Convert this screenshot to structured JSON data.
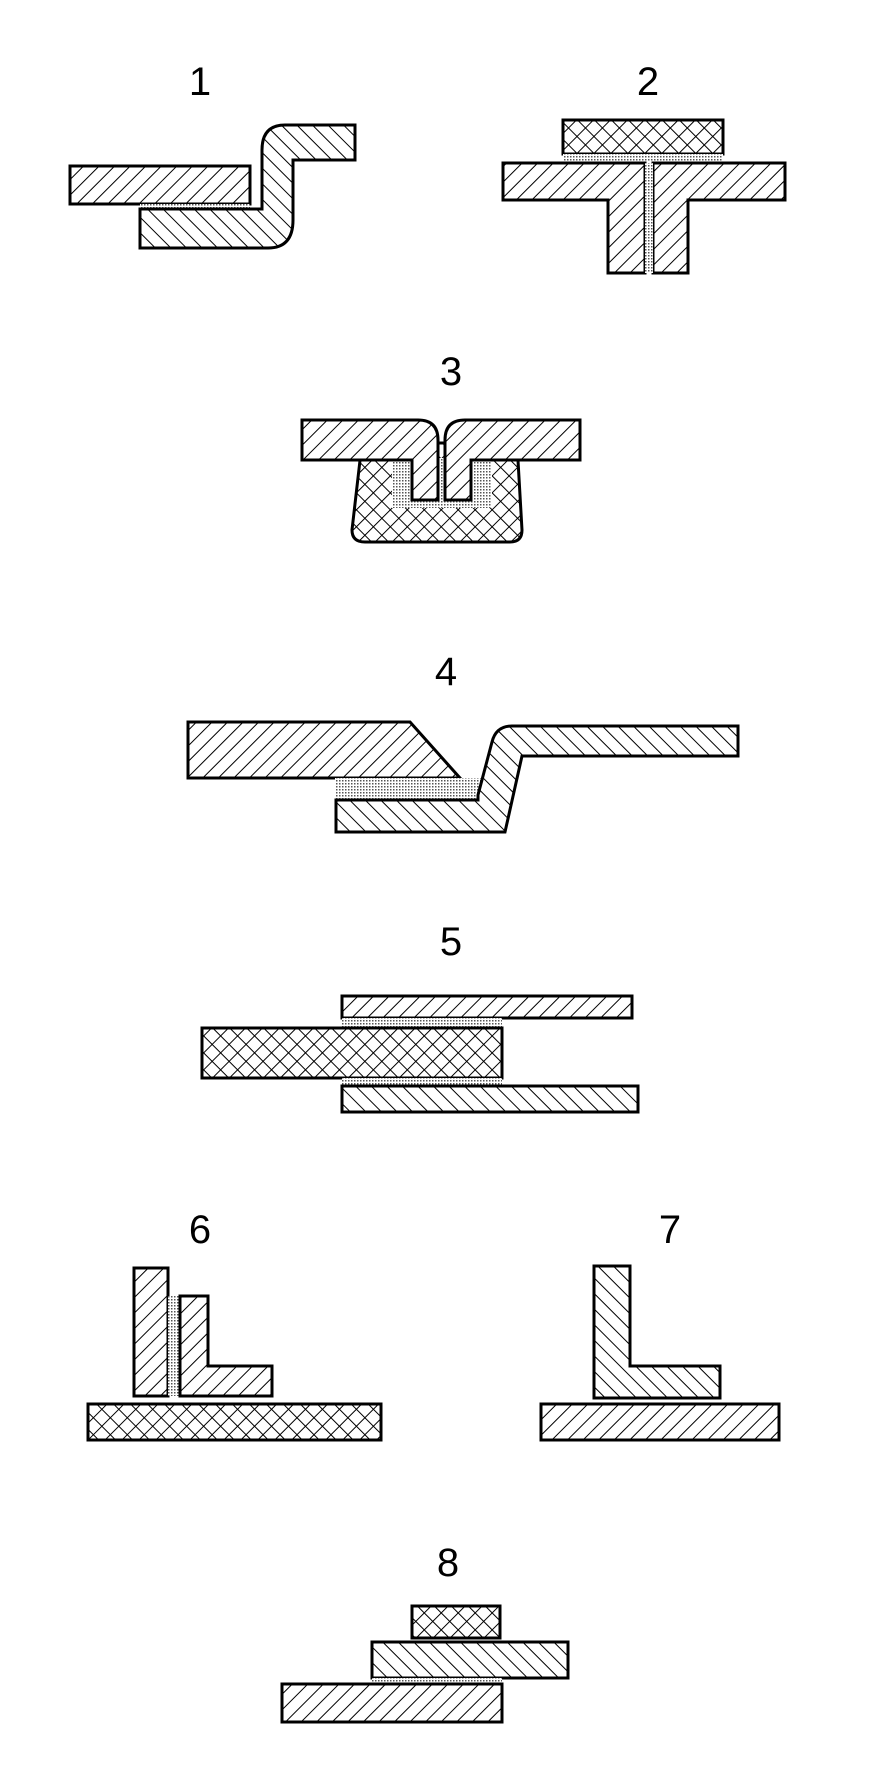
{
  "figures": [
    {
      "label": "1"
    },
    {
      "label": "2"
    },
    {
      "label": "3"
    },
    {
      "label": "4"
    },
    {
      "label": "5"
    },
    {
      "label": "6"
    },
    {
      "label": "7"
    },
    {
      "label": "8"
    }
  ],
  "colors": {
    "stroke": "#000000",
    "background": "#ffffff",
    "adhesive": "#9a9a9a"
  }
}
